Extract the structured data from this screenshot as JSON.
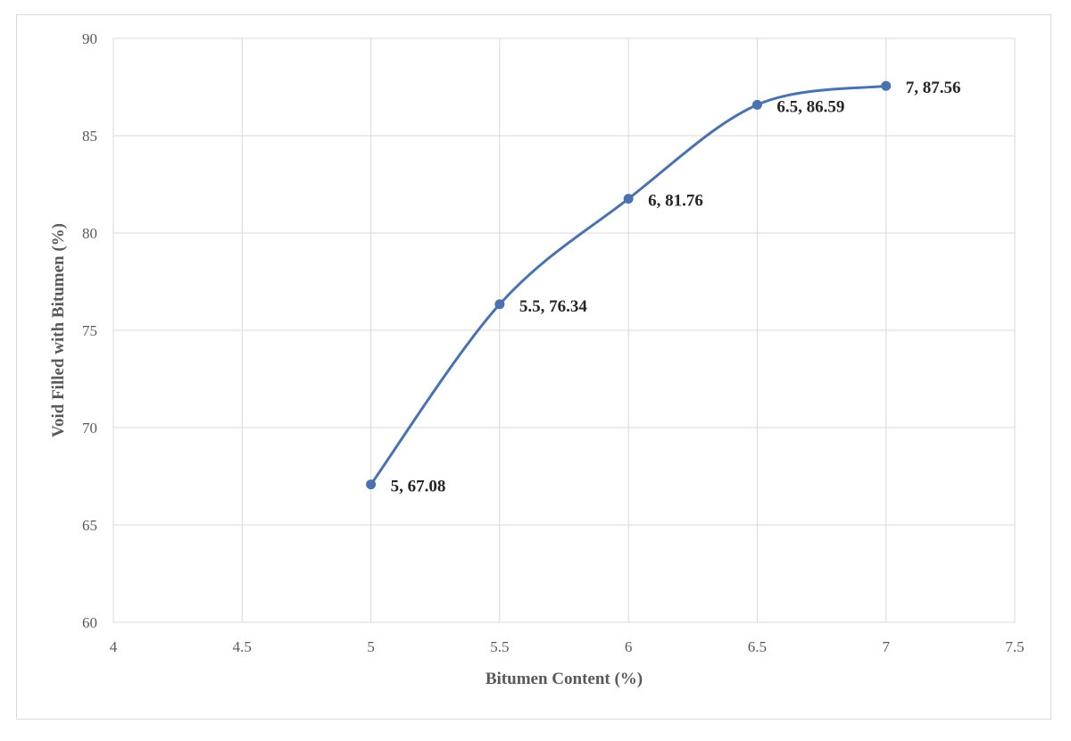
{
  "chart_data": {
    "type": "line",
    "title": "",
    "xlabel": "Bitumen Content (%)",
    "ylabel": "Void Filled with Bitumen (%)",
    "xlim": [
      4,
      7.5
    ],
    "ylim": [
      60,
      90
    ],
    "x_ticks": [
      "4",
      "4.5",
      "5",
      "5.5",
      "6",
      "6.5",
      "7",
      "7.5"
    ],
    "y_ticks": [
      "60",
      "65",
      "70",
      "75",
      "80",
      "85",
      "90"
    ],
    "grid": true,
    "smooth": true,
    "series": [
      {
        "x": [
          5,
          5.5,
          6,
          6.5,
          7
        ],
        "y": [
          67.08,
          76.34,
          81.76,
          86.59,
          87.56
        ],
        "labels": [
          "5, 67.08",
          "5.5, 76.34",
          "6, 81.76",
          "6.5, 86.59",
          "7, 87.56"
        ],
        "color": "#4a72b0"
      }
    ]
  }
}
